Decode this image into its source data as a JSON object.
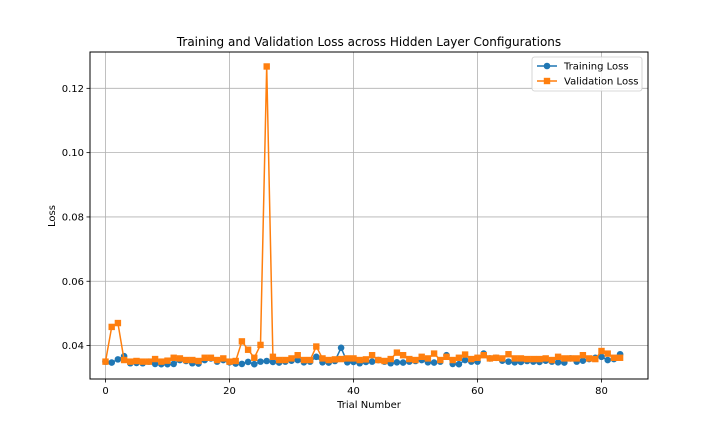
{
  "chart_data": {
    "type": "line",
    "title": "Training and Validation Loss across Hidden Layer Configurations",
    "xlabel": "Trial Number",
    "ylabel": "Loss",
    "xlim": [
      -2.5,
      87.5
    ],
    "ylim": [
      0.0296,
      0.1313
    ],
    "xticks": [
      0,
      20,
      40,
      60,
      80
    ],
    "yticks": [
      0.04,
      0.06,
      0.08,
      0.1,
      0.12
    ],
    "ytick_labels": [
      "0.04",
      "0.06",
      "0.08",
      "0.10",
      "0.12"
    ],
    "grid": true,
    "legend_position": "top-right",
    "x": [
      0,
      1,
      2,
      3,
      4,
      5,
      6,
      7,
      8,
      9,
      10,
      11,
      12,
      13,
      14,
      15,
      16,
      17,
      18,
      19,
      20,
      21,
      22,
      23,
      24,
      25,
      26,
      27,
      28,
      29,
      30,
      31,
      32,
      33,
      34,
      35,
      36,
      37,
      38,
      39,
      40,
      41,
      42,
      43,
      44,
      45,
      46,
      47,
      48,
      49,
      50,
      51,
      52,
      53,
      54,
      55,
      56,
      57,
      58,
      59,
      60,
      61,
      62,
      63,
      64,
      65,
      66,
      67,
      68,
      69,
      70,
      71,
      72,
      73,
      74,
      75,
      76,
      77,
      78,
      79,
      80,
      81,
      82,
      83
    ],
    "series": [
      {
        "name": "Training Loss",
        "color": "#1f77b4",
        "marker": "circle",
        "values": [
          0.035,
          0.0347,
          0.0357,
          0.0367,
          0.0345,
          0.0346,
          0.0345,
          0.035,
          0.0343,
          0.0342,
          0.0342,
          0.0343,
          0.0355,
          0.0352,
          0.0345,
          0.0344,
          0.0355,
          0.036,
          0.035,
          0.0355,
          0.0348,
          0.0344,
          0.0343,
          0.0349,
          0.0342,
          0.035,
          0.0352,
          0.0349,
          0.0347,
          0.035,
          0.0353,
          0.0355,
          0.0348,
          0.035,
          0.0365,
          0.0348,
          0.0347,
          0.0352,
          0.0393,
          0.0348,
          0.0349,
          0.0345,
          0.0349,
          0.035,
          0.0355,
          0.035,
          0.0345,
          0.0348,
          0.0347,
          0.035,
          0.0352,
          0.0355,
          0.0348,
          0.0347,
          0.035,
          0.037,
          0.0343,
          0.0342,
          0.0355,
          0.035,
          0.035,
          0.0375,
          0.036,
          0.0362,
          0.0353,
          0.035,
          0.0348,
          0.0349,
          0.0352,
          0.035,
          0.0349,
          0.0353,
          0.035,
          0.0348,
          0.0347,
          0.036,
          0.035,
          0.0353,
          0.0358,
          0.0362,
          0.0365,
          0.0355,
          0.0358,
          0.0373
        ]
      },
      {
        "name": "Validation Loss",
        "color": "#ff7f0e",
        "marker": "square",
        "values": [
          0.035,
          0.0458,
          0.047,
          0.0355,
          0.035,
          0.0352,
          0.035,
          0.035,
          0.0358,
          0.035,
          0.0353,
          0.0362,
          0.036,
          0.0355,
          0.0355,
          0.0352,
          0.0362,
          0.0362,
          0.0355,
          0.036,
          0.035,
          0.0352,
          0.0413,
          0.0387,
          0.0362,
          0.0402,
          0.1268,
          0.0365,
          0.0355,
          0.0355,
          0.036,
          0.037,
          0.0355,
          0.0355,
          0.0397,
          0.036,
          0.0355,
          0.0357,
          0.0358,
          0.036,
          0.036,
          0.0355,
          0.0357,
          0.037,
          0.0355,
          0.0352,
          0.0358,
          0.0378,
          0.037,
          0.0358,
          0.0355,
          0.0365,
          0.036,
          0.0375,
          0.0355,
          0.0365,
          0.0355,
          0.0362,
          0.0372,
          0.0358,
          0.0362,
          0.037,
          0.036,
          0.0362,
          0.036,
          0.0373,
          0.036,
          0.036,
          0.0358,
          0.0358,
          0.0358,
          0.036,
          0.0355,
          0.0365,
          0.036,
          0.036,
          0.036,
          0.037,
          0.036,
          0.0358,
          0.0383,
          0.0375,
          0.0362,
          0.0362
        ]
      }
    ]
  }
}
